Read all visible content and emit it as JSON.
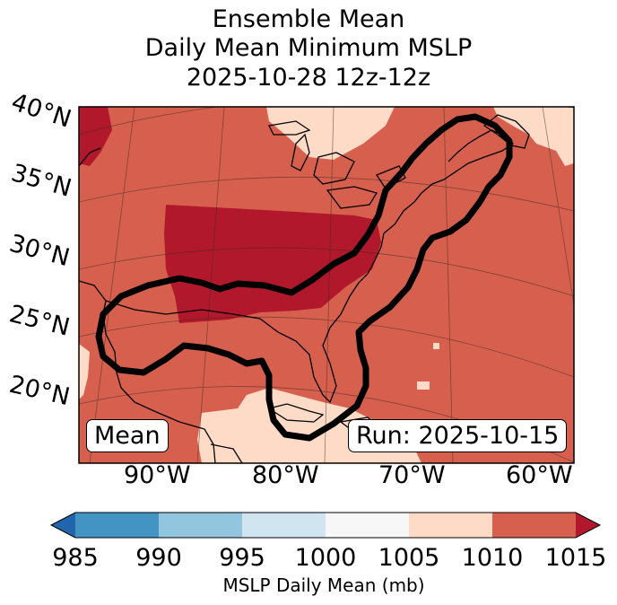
{
  "title": {
    "line1": "Ensemble Mean",
    "line2": "Daily Mean Minimum MSLP",
    "line3": "2025-10-28 12z-12z"
  },
  "lat_labels": [
    "40°N",
    "35°N",
    "30°N",
    "25°N",
    "20°N"
  ],
  "lon_labels": [
    "90°W",
    "80°W",
    "70°W",
    "60°W"
  ],
  "badges": {
    "left": "Mean",
    "right": "Run: 2025-10-15"
  },
  "colorbar": {
    "label": "MSLP Daily Mean (mb)",
    "ticks": [
      "985",
      "990",
      "995",
      "1000",
      "1005",
      "1010",
      "1015"
    ],
    "colors": [
      "#2166ac",
      "#4393c3",
      "#92c5de",
      "#d1e5f0",
      "#f7f7f7",
      "#fddbc7",
      "#d6604d",
      "#b2182b"
    ]
  },
  "map_colors": {
    "background": "#d6604d",
    "high": "#b2182b",
    "low": "#fddbc7"
  }
}
